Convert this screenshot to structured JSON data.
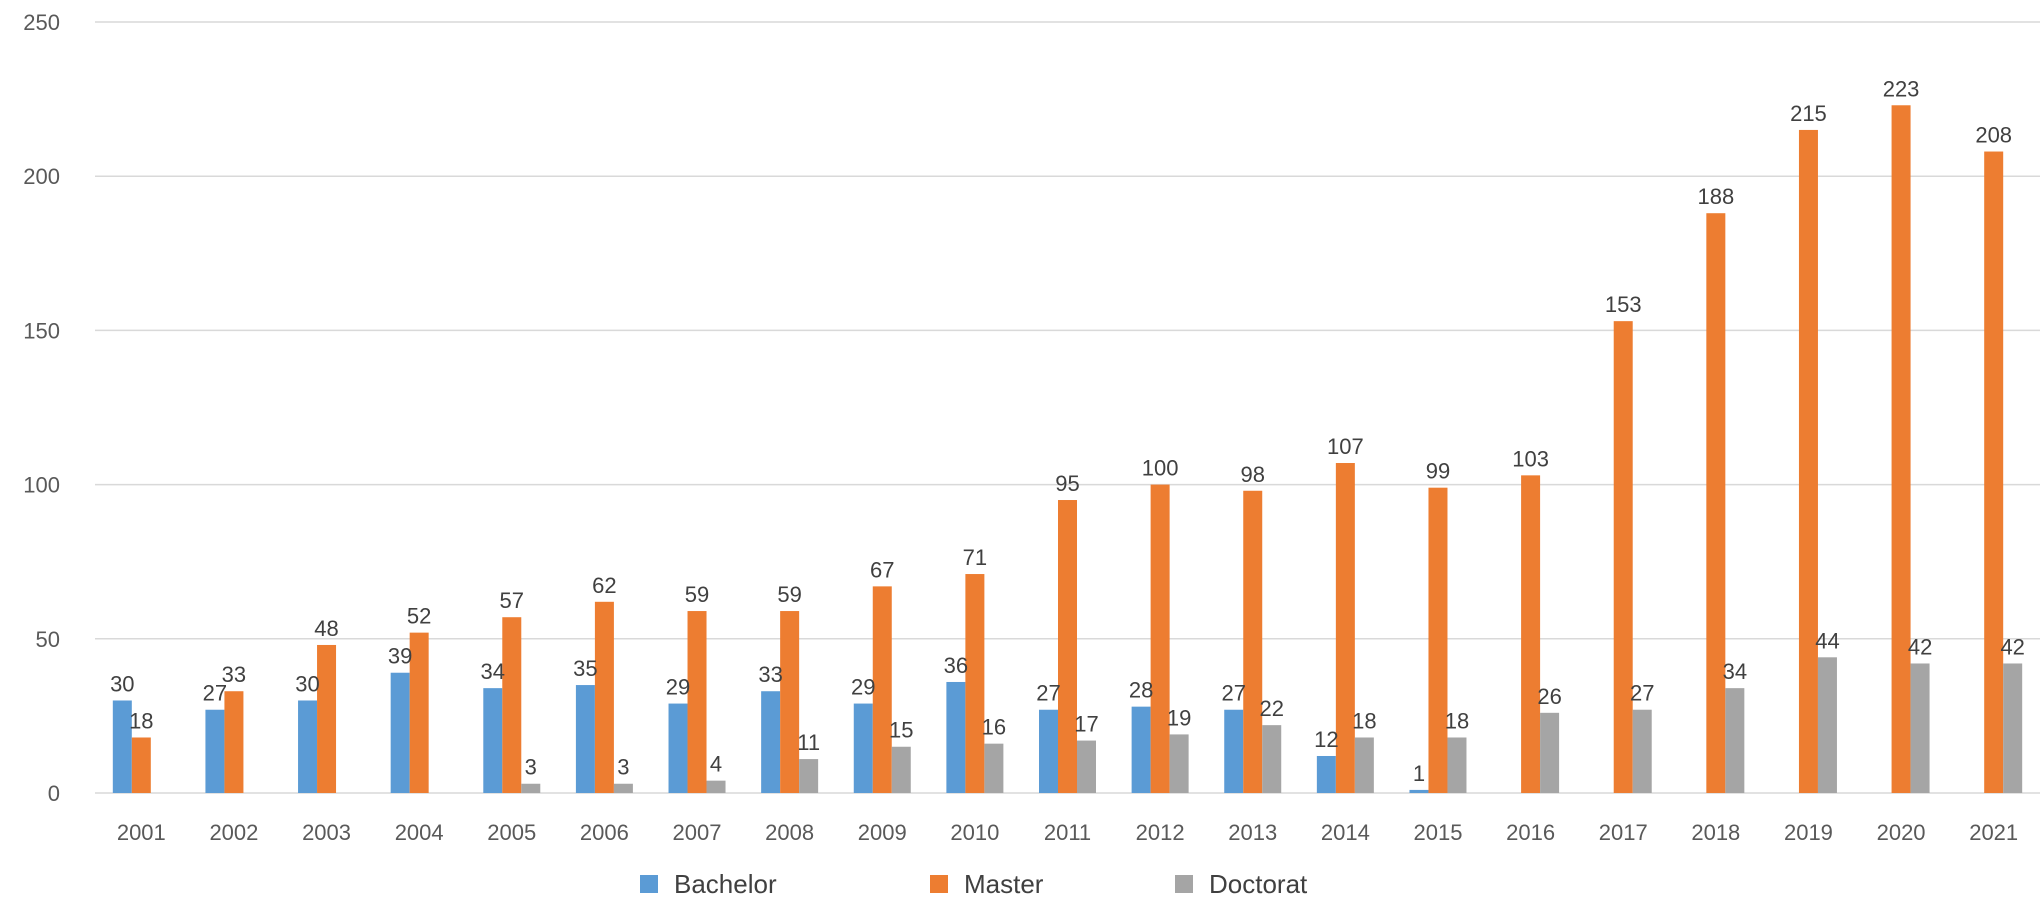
{
  "chart_data": {
    "type": "bar",
    "title": "",
    "xlabel": "",
    "ylabel": "",
    "ylim": [
      0,
      250
    ],
    "yticks": [
      0,
      50,
      100,
      150,
      200,
      250
    ],
    "grid": true,
    "legend_position": "bottom",
    "categories": [
      "2001",
      "2002",
      "2003",
      "2004",
      "2005",
      "2006",
      "2007",
      "2008",
      "2009",
      "2010",
      "2011",
      "2012",
      "2013",
      "2014",
      "2015",
      "2016",
      "2017",
      "2018",
      "2019",
      "2020",
      "2021"
    ],
    "series": [
      {
        "name": "Bachelor",
        "color": "#5b9bd5",
        "values": [
          30,
          27,
          30,
          39,
          34,
          35,
          29,
          33,
          29,
          36,
          27,
          28,
          27,
          12,
          1,
          null,
          null,
          null,
          null,
          null,
          null
        ]
      },
      {
        "name": "Master",
        "color": "#ed7d31",
        "values": [
          18,
          33,
          48,
          52,
          57,
          62,
          59,
          59,
          67,
          71,
          95,
          100,
          98,
          107,
          99,
          103,
          153,
          188,
          215,
          223,
          208
        ]
      },
      {
        "name": "Doctorat",
        "color": "#a5a5a5",
        "values": [
          null,
          null,
          null,
          null,
          3,
          3,
          4,
          11,
          15,
          16,
          17,
          19,
          22,
          18,
          18,
          26,
          27,
          34,
          44,
          42,
          42
        ]
      }
    ]
  }
}
